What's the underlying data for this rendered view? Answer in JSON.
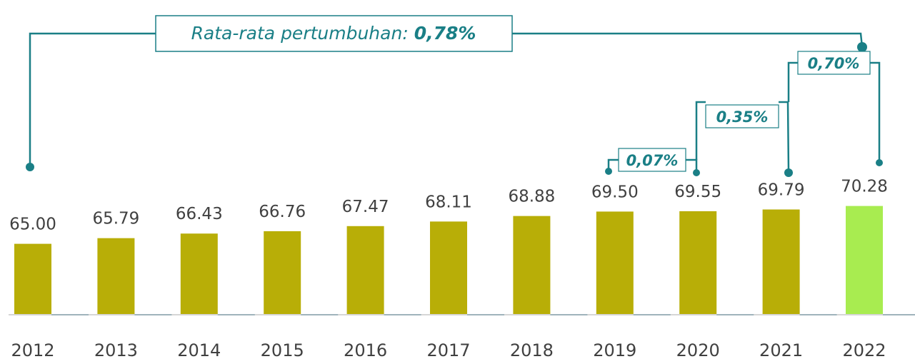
{
  "chart_data": {
    "type": "bar",
    "categories": [
      "2012",
      "2013",
      "2014",
      "2015",
      "2016",
      "2017",
      "2018",
      "2019",
      "2020",
      "2021",
      "2022"
    ],
    "values": [
      65.0,
      65.79,
      66.43,
      66.76,
      67.47,
      68.11,
      68.88,
      69.5,
      69.55,
      69.79,
      70.28
    ],
    "value_labels": [
      "65.00",
      "65.79",
      "66.43",
      "66.76",
      "67.47",
      "68.11",
      "68.88",
      "69.50",
      "69.55",
      "69.79",
      "70.28"
    ],
    "colors": [
      "#b8ae07",
      "#b8ae07",
      "#b8ae07",
      "#b8ae07",
      "#b8ae07",
      "#b8ae07",
      "#b8ae07",
      "#b8ae07",
      "#b8ae07",
      "#b8ae07",
      "#a8ec50"
    ],
    "ylim": [
      55.2,
      85
    ],
    "annotations": {
      "average_label": "Rata-rata pertumbuhan:",
      "average_value": "0,78%",
      "growth_labels": [
        "0,07%",
        "0,35%",
        "0,70%"
      ]
    }
  }
}
